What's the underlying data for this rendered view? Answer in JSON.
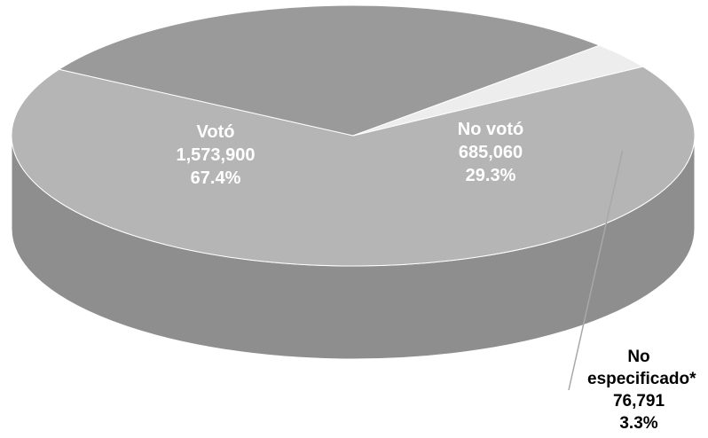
{
  "chart_data": {
    "type": "pie",
    "title": "",
    "series": [
      {
        "values": [
          {
            "label": "Votó",
            "value": 1573900,
            "value_text": "1,573,900",
            "percent_text": "67.4%",
            "color": "#b5b5b5",
            "side_color": "#8e8e8e"
          },
          {
            "label": "No votó",
            "value": 685060,
            "value_text": "685,060",
            "percent_text": "29.3%",
            "color": "#9a9a9a",
            "side_color": "#5c5c5c"
          },
          {
            "label": "No especificado*",
            "value": 76791,
            "value_text": "76,791",
            "percent_text": "3.3%",
            "color": "#ededed",
            "side_color": "#8a8a8a"
          }
        ]
      }
    ],
    "legend": "none",
    "style": "3d"
  }
}
